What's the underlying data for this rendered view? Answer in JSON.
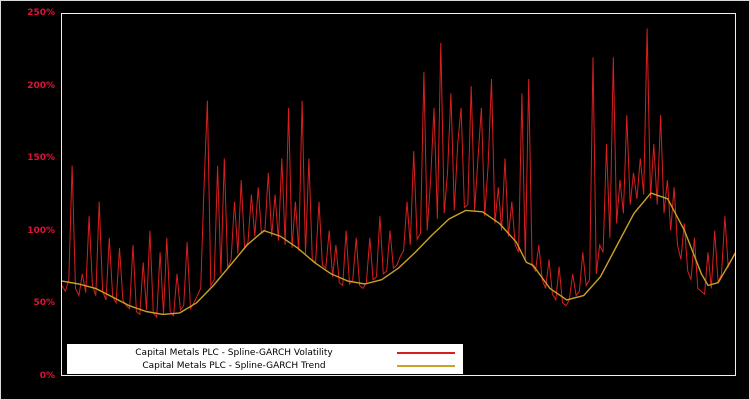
{
  "chart_data": {
    "type": "line",
    "title": "",
    "xlabel": "",
    "ylabel": "",
    "ylim": [
      0,
      250
    ],
    "ytick_values": [
      0,
      50,
      100,
      150,
      200,
      250
    ],
    "yticklabels": [
      "0%",
      "50%",
      "100%",
      "150%",
      "200%",
      "250%"
    ],
    "background_color": "#000000",
    "axis_color": "#f0f0f0",
    "tick_label_color": "#dc143c",
    "grid": false,
    "legend": {
      "position": "bottom-left",
      "background": "#ffffff",
      "entries": [
        {
          "label": "Capital Metals PLC - Spline-GARCH Volatility",
          "color": "#d81f1f"
        },
        {
          "label": "Capital Metals PLC - Spline-GARCH Trend",
          "color": "#c9a227"
        }
      ]
    },
    "series": [
      {
        "name": "Capital Metals PLC - Spline-GARCH Volatility",
        "color": "#d81f1f",
        "width": 1,
        "values": [
          62,
          58,
          66,
          145,
          60,
          55,
          70,
          57,
          110,
          62,
          55,
          120,
          58,
          52,
          95,
          54,
          50,
          88,
          52,
          48,
          46,
          90,
          44,
          42,
          78,
          45,
          100,
          43,
          40,
          85,
          42,
          95,
          44,
          41,
          70,
          45,
          48,
          92,
          46,
          50,
          55,
          60,
          130,
          190,
          62,
          66,
          145,
          70,
          150,
          74,
          80,
          120,
          84,
          135,
          88,
          92,
          125,
          96,
          130,
          98,
          100,
          140,
          96,
          125,
          93,
          150,
          90,
          185,
          88,
          120,
          86,
          190,
          84,
          150,
          80,
          78,
          120,
          76,
          74,
          100,
          68,
          90,
          64,
          62,
          100,
          63,
          66,
          95,
          62,
          60,
          64,
          95,
          66,
          68,
          110,
          70,
          72,
          100,
          74,
          76,
          82,
          86,
          120,
          90,
          155,
          94,
          98,
          210,
          100,
          135,
          185,
          108,
          230,
          112,
          140,
          195,
          114,
          160,
          185,
          116,
          118,
          200,
          114,
          150,
          185,
          110,
          145,
          205,
          105,
          130,
          100,
          150,
          96,
          120,
          90,
          85,
          195,
          80,
          205,
          76,
          72,
          90,
          66,
          60,
          80,
          56,
          52,
          75,
          50,
          48,
          52,
          70,
          55,
          58,
          85,
          62,
          66,
          220,
          70,
          90,
          85,
          160,
          95,
          220,
          105,
          135,
          112,
          180,
          118,
          140,
          122,
          150,
          125,
          240,
          122,
          160,
          118,
          180,
          112,
          135,
          100,
          130,
          90,
          80,
          105,
          72,
          66,
          95,
          60,
          58,
          56,
          85,
          60,
          100,
          64,
          70,
          110,
          75,
          80,
          85
        ]
      },
      {
        "name": "Capital Metals PLC - Spline-GARCH Trend",
        "color": "#c9a227",
        "width": 1.4,
        "x": [
          0,
          0.025,
          0.05,
          0.075,
          0.1,
          0.125,
          0.15,
          0.175,
          0.2,
          0.225,
          0.25,
          0.275,
          0.3,
          0.325,
          0.35,
          0.375,
          0.4,
          0.425,
          0.45,
          0.475,
          0.5,
          0.525,
          0.55,
          0.575,
          0.6,
          0.625,
          0.65,
          0.675,
          0.69,
          0.7,
          0.725,
          0.75,
          0.775,
          0.8,
          0.825,
          0.85,
          0.875,
          0.9,
          0.925,
          0.95,
          0.96,
          0.975,
          1.0
        ],
        "values": [
          65,
          63,
          60,
          54,
          48,
          44,
          42,
          43,
          50,
          62,
          76,
          90,
          100,
          96,
          88,
          78,
          70,
          65,
          63,
          66,
          74,
          85,
          97,
          108,
          114,
          113,
          105,
          92,
          78,
          76,
          60,
          52,
          55,
          68,
          90,
          112,
          126,
          122,
          100,
          70,
          62,
          64,
          84
        ]
      }
    ]
  }
}
